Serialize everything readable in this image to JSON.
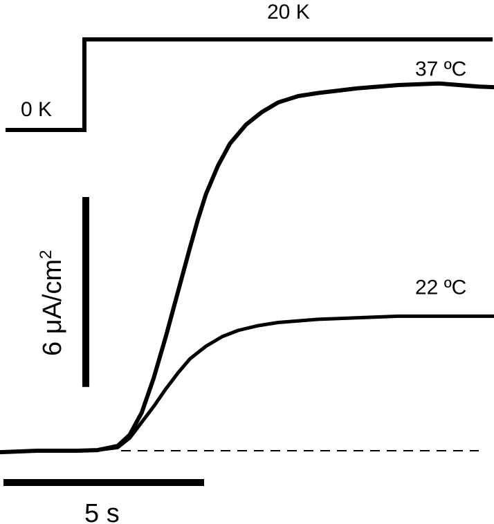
{
  "chart_data": {
    "type": "line",
    "title": "",
    "xlabel": "",
    "ylabel": "",
    "stimulus": {
      "low_label": "0 K",
      "high_label": "20 K",
      "step_time_s": 0
    },
    "scale_bars": {
      "x": {
        "label": "5 s",
        "value": 5,
        "unit": "s"
      },
      "y": {
        "label_main": "6 μA/cm",
        "label_sup": "2",
        "value": 6,
        "unit": "μA/cm2"
      }
    },
    "baseline": {
      "style": "dashed",
      "value": 0
    },
    "series": [
      {
        "name": "37 ºC",
        "x": [
          -4.0,
          -3.0,
          -2.0,
          -1.0,
          -0.5,
          0.0,
          0.3,
          0.6,
          0.9,
          1.2,
          1.5,
          1.8,
          2.0,
          2.2,
          2.5,
          2.8,
          3.2,
          3.6,
          4.0,
          4.5,
          5.0,
          6.0,
          7.0,
          8.0,
          9.0,
          10.0,
          11.0,
          12.0,
          13.0,
          14.0,
          15.0
        ],
        "y": [
          0.0,
          -0.05,
          0.0,
          0.0,
          0.02,
          0.15,
          0.5,
          1.2,
          2.3,
          3.6,
          5.0,
          6.4,
          7.3,
          8.1,
          9.0,
          9.7,
          10.3,
          10.7,
          11.0,
          11.2,
          11.3,
          11.45,
          11.55,
          11.6,
          11.5,
          11.45,
          11.4,
          11.35,
          11.3,
          11.2,
          11.15
        ]
      },
      {
        "name": "22 ºC",
        "x": [
          -4.0,
          -3.0,
          -2.0,
          -1.0,
          -0.5,
          0.0,
          0.3,
          0.6,
          0.9,
          1.2,
          1.5,
          1.8,
          2.2,
          2.6,
          3.0,
          3.5,
          4.0,
          5.0,
          6.0,
          7.0,
          8.0,
          9.0,
          10.0,
          11.0,
          12.0,
          13.0,
          14.0,
          15.0
        ],
        "y": [
          0.0,
          -0.05,
          0.0,
          0.0,
          0.02,
          0.1,
          0.4,
          0.9,
          1.4,
          1.95,
          2.45,
          2.9,
          3.3,
          3.6,
          3.8,
          3.95,
          4.05,
          4.15,
          4.2,
          4.25,
          4.25,
          4.25,
          4.25,
          4.25,
          4.25,
          4.25,
          4.25,
          4.25
        ]
      }
    ]
  }
}
